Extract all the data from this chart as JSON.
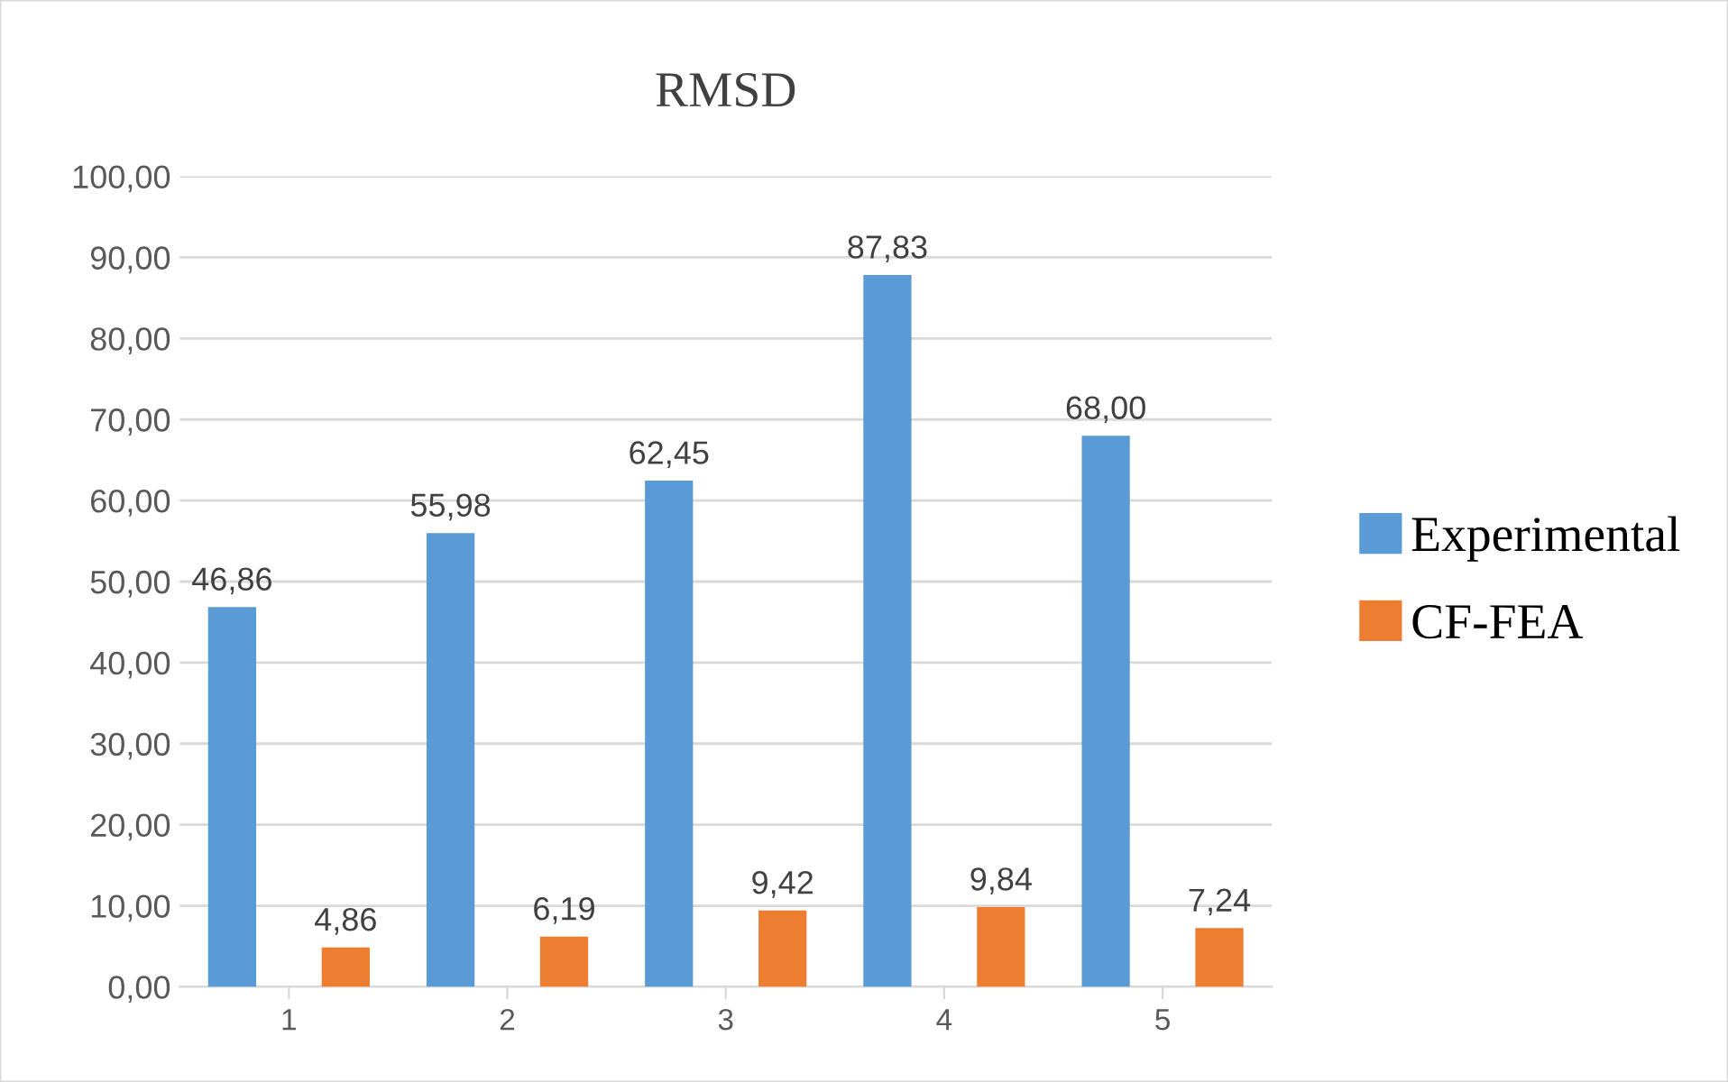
{
  "chart_data": {
    "type": "bar",
    "title": "RMSD",
    "categories": [
      "1",
      "2",
      "3",
      "4",
      "5"
    ],
    "series": [
      {
        "name": "Experimental",
        "color": "#5b9bd5",
        "values": [
          46.86,
          55.98,
          62.45,
          87.83,
          68.0
        ],
        "value_labels": [
          "46,86",
          "55,98",
          "62,45",
          "87,83",
          "68,00"
        ]
      },
      {
        "name": "CF-FEA",
        "color": "#ed7d31",
        "values": [
          4.86,
          6.19,
          9.42,
          9.84,
          7.24
        ],
        "value_labels": [
          "4,86",
          "6,19",
          "9,42",
          "9,84",
          "7,24"
        ]
      }
    ],
    "ylim": [
      0,
      100
    ],
    "yticks": [
      {
        "value": 0,
        "label": "0,00"
      },
      {
        "value": 10,
        "label": "10,00"
      },
      {
        "value": 20,
        "label": "20,00"
      },
      {
        "value": 30,
        "label": "30,00"
      },
      {
        "value": 40,
        "label": "40,00"
      },
      {
        "value": 50,
        "label": "50,00"
      },
      {
        "value": 60,
        "label": "60,00"
      },
      {
        "value": 70,
        "label": "70,00"
      },
      {
        "value": 80,
        "label": "80,00"
      },
      {
        "value": 90,
        "label": "90,00"
      },
      {
        "value": 100,
        "label": "100,00"
      }
    ],
    "grid": "y",
    "legend": "right"
  }
}
